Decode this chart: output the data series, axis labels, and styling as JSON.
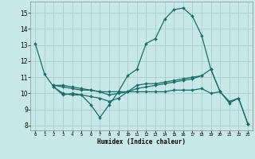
{
  "xlabel": "Humidex (Indice chaleur)",
  "background_color": "#c8e8e8",
  "grid_color": "#a8cccc",
  "line_color": "#1a6b6b",
  "xlim": [
    -0.5,
    23.5
  ],
  "ylim": [
    7.7,
    15.7
  ],
  "yticks": [
    8,
    9,
    10,
    11,
    12,
    13,
    14,
    15
  ],
  "xticks": [
    0,
    1,
    2,
    3,
    4,
    5,
    6,
    7,
    8,
    9,
    10,
    11,
    12,
    13,
    14,
    15,
    16,
    17,
    18,
    19,
    20,
    21,
    22,
    23
  ],
  "series": [
    [
      13.1,
      11.2,
      10.4,
      9.9,
      10.0,
      9.9,
      9.3,
      8.5,
      9.3,
      10.1,
      11.1,
      11.5,
      13.1,
      13.4,
      14.6,
      15.2,
      15.3,
      14.8,
      13.6,
      11.5,
      10.1,
      null,
      null,
      null
    ],
    [
      null,
      null,
      10.4,
      10.0,
      9.9,
      9.9,
      9.8,
      9.7,
      9.5,
      9.7,
      10.1,
      10.3,
      10.4,
      10.5,
      10.6,
      10.7,
      10.8,
      10.9,
      11.1,
      11.5,
      10.1,
      9.5,
      9.7,
      8.1
    ],
    [
      null,
      null,
      10.5,
      10.4,
      10.3,
      10.2,
      10.2,
      10.1,
      10.1,
      10.1,
      10.1,
      10.1,
      10.1,
      10.1,
      10.1,
      10.2,
      10.2,
      10.2,
      10.3,
      10.0,
      10.1,
      9.4,
      9.7,
      8.1
    ],
    [
      null,
      null,
      10.5,
      10.5,
      10.4,
      10.3,
      10.2,
      10.1,
      9.9,
      10.0,
      10.1,
      10.5,
      10.6,
      10.6,
      10.7,
      10.8,
      10.9,
      11.0,
      11.1,
      null,
      null,
      null,
      null,
      null
    ]
  ]
}
